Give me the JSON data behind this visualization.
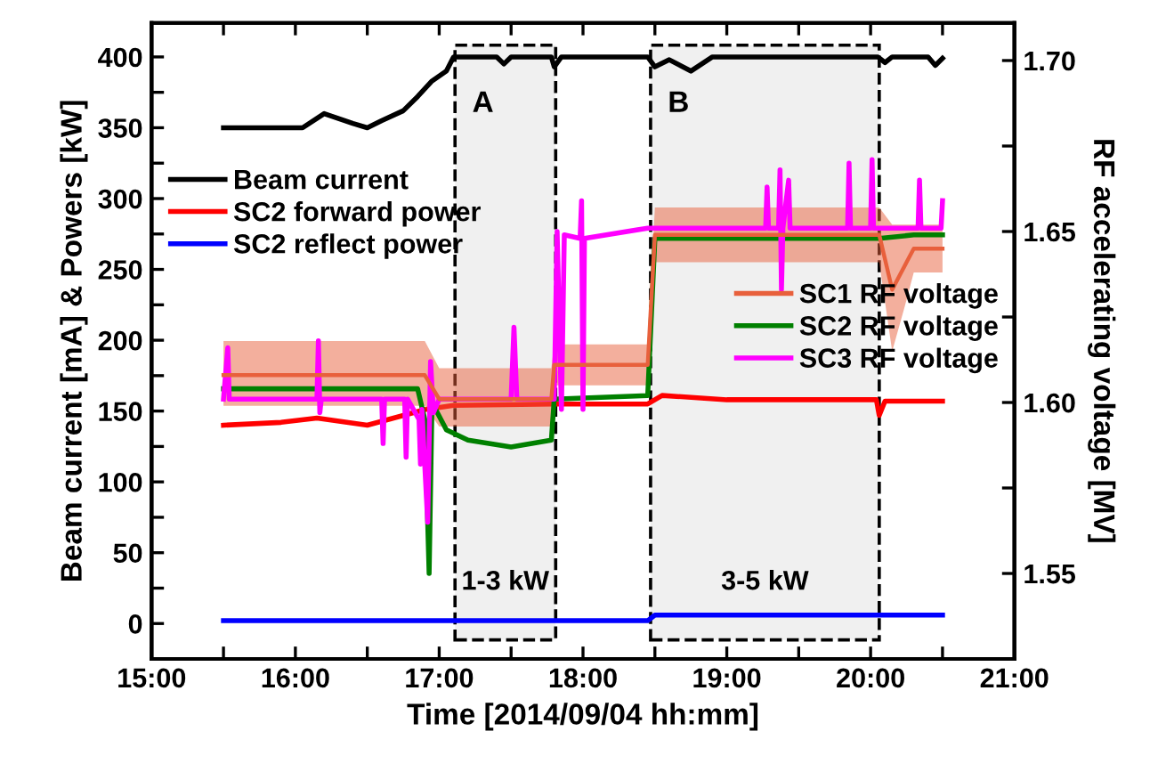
{
  "chart_data": {
    "type": "line",
    "xlabel": "Time [2014/09/04 hh:mm]",
    "ylabel": "Beam current [mA] & Powers [kW]",
    "y2label": "RF accelerating voltage [MV]",
    "xlim": [
      15,
      21
    ],
    "xticks": [
      {
        "value": 15,
        "label": "15:00"
      },
      {
        "value": 15.5,
        "label": null
      },
      {
        "value": 16,
        "label": "16:00"
      },
      {
        "value": 16.5,
        "label": null
      },
      {
        "value": 17,
        "label": "17:00"
      },
      {
        "value": 17.5,
        "label": null
      },
      {
        "value": 18,
        "label": "18:00"
      },
      {
        "value": 18.5,
        "label": null
      },
      {
        "value": 19,
        "label": "19:00"
      },
      {
        "value": 19.5,
        "label": null
      },
      {
        "value": 20,
        "label": "20:00"
      },
      {
        "value": 20.5,
        "label": null
      },
      {
        "value": 21,
        "label": "21:00"
      }
    ],
    "ylim": [
      -25,
      424
    ],
    "yticks": [
      0,
      {
        "value": 25,
        "label": null
      },
      50,
      {
        "value": 75,
        "label": null
      },
      100,
      {
        "value": 125,
        "label": null
      },
      150,
      {
        "value": 175,
        "label": null
      },
      200,
      {
        "value": 225,
        "label": null
      },
      250,
      {
        "value": 275,
        "label": null
      },
      300,
      {
        "value": 325,
        "label": null
      },
      350,
      {
        "value": 375,
        "label": null
      },
      400
    ],
    "y2lim": [
      1.525,
      1.711
    ],
    "y2ticks": [
      {
        "value": 1.55,
        "label": "1.55"
      },
      {
        "value": 1.575,
        "label": null
      },
      {
        "value": 1.6,
        "label": "1.60"
      },
      {
        "value": 1.625,
        "label": null
      },
      {
        "value": 1.65,
        "label": "1.65"
      },
      {
        "value": 1.675,
        "label": null
      },
      {
        "value": 1.7,
        "label": "1.70"
      }
    ],
    "legend": "top left",
    "grid": false,
    "line_style": "solid",
    "marker": "none",
    "bands": [
      {
        "axis": "x",
        "from": 17.11,
        "to": 17.81,
        "label": "A",
        "color": "#f0f0f0"
      },
      {
        "axis": "x",
        "from": 18.47,
        "to": 20.06,
        "label": "B",
        "color": "#f0f0f0"
      }
    ],
    "annotations": [
      "1-3 kW",
      "3-5 kW"
    ],
    "series": [
      {
        "name": "Beam current",
        "color": "#000000",
        "x": [
          15.5,
          16.05,
          16.2,
          16.4,
          16.5,
          16.6,
          16.75,
          16.85,
          16.95,
          17.05,
          17.1,
          17.4,
          17.45,
          17.5,
          17.78,
          17.8,
          17.85,
          18.45,
          18.5,
          18.6,
          18.75,
          18.9,
          20.05,
          20.1,
          20.15,
          20.4,
          20.45,
          20.5
        ],
        "values": [
          350,
          350,
          360,
          353,
          350,
          355,
          362,
          372,
          383,
          390,
          400,
          400,
          395,
          400,
          400,
          393,
          400,
          400,
          393,
          398,
          390,
          400,
          400,
          396,
          400,
          400,
          394,
          399
        ]
      },
      {
        "name": "SC2 forward power",
        "color": "#ff0000",
        "x": [
          15.5,
          15.9,
          16.15,
          16.5,
          16.9,
          17.1,
          17.8,
          18.45,
          18.55,
          19.0,
          20.04,
          20.06,
          20.1,
          20.5
        ],
        "values": [
          140,
          142,
          145,
          140,
          151,
          154,
          155,
          155,
          161,
          158,
          158,
          147,
          157,
          157
        ]
      },
      {
        "name": "SC2 reflect power",
        "color": "#0000ff",
        "x": [
          15.5,
          18.45,
          18.5,
          20.5
        ],
        "values": [
          2,
          2,
          6,
          6
        ]
      },
      {
        "name": "SC1 RF voltage",
        "color": "#e8603c",
        "axis": "y2",
        "x": [
          15.5,
          16.9,
          17.0,
          17.78,
          17.8,
          18.45,
          18.5,
          20.06,
          20.15,
          20.25,
          20.3,
          20.5
        ],
        "values": [
          1.608,
          1.608,
          1.601,
          1.601,
          1.611,
          1.611,
          1.649,
          1.649,
          1.633,
          1.641,
          1.645,
          1.645
        ],
        "lower": [
          1.599,
          1.599,
          1.593,
          1.593,
          1.605,
          1.605,
          1.641,
          1.641,
          1.615,
          1.63,
          1.638,
          1.638
        ],
        "upper": [
          1.618,
          1.618,
          1.61,
          1.61,
          1.617,
          1.617,
          1.657,
          1.657,
          1.652,
          1.652,
          1.652,
          1.652
        ]
      },
      {
        "name": "SC2 RF voltage",
        "color": "#008000",
        "axis": "y2",
        "x": [
          15.5,
          16.85,
          16.9,
          16.93,
          16.95,
          17.05,
          17.2,
          17.5,
          17.78,
          17.8,
          18.45,
          18.5,
          20.06,
          20.3,
          20.5
        ],
        "values": [
          1.604,
          1.604,
          1.595,
          1.55,
          1.6,
          1.592,
          1.589,
          1.587,
          1.589,
          1.601,
          1.602,
          1.648,
          1.648,
          1.649,
          1.649
        ]
      },
      {
        "name": "SC3 RF voltage",
        "color": "#ff00ff",
        "axis": "y2",
        "x": [
          15.5,
          15.53,
          15.54,
          16.15,
          16.16,
          16.17,
          16.18,
          16.6,
          16.61,
          16.62,
          16.76,
          16.77,
          16.78,
          16.86,
          16.87,
          16.88,
          16.92,
          16.94,
          16.96,
          17.0,
          17.5,
          17.52,
          17.54,
          17.8,
          17.82,
          17.85,
          17.87,
          17.98,
          17.99,
          18.0,
          18.01,
          18.45,
          18.5,
          19.27,
          19.28,
          19.29,
          19.36,
          19.37,
          19.38,
          19.39,
          19.43,
          19.44,
          19.84,
          19.85,
          19.86,
          20.0,
          20.01,
          20.02,
          20.33,
          20.34,
          20.35,
          20.49,
          20.5
        ],
        "values": [
          1.601,
          1.616,
          1.601,
          1.601,
          1.618,
          1.597,
          1.601,
          1.601,
          1.588,
          1.601,
          1.601,
          1.584,
          1.601,
          1.595,
          1.582,
          1.598,
          1.565,
          1.612,
          1.597,
          1.601,
          1.601,
          1.622,
          1.601,
          1.601,
          1.65,
          1.598,
          1.649,
          1.648,
          1.659,
          1.598,
          1.648,
          1.651,
          1.651,
          1.651,
          1.663,
          1.651,
          1.651,
          1.668,
          1.633,
          1.651,
          1.665,
          1.651,
          1.651,
          1.67,
          1.651,
          1.651,
          1.671,
          1.651,
          1.651,
          1.665,
          1.651,
          1.651,
          1.659
        ]
      }
    ]
  }
}
